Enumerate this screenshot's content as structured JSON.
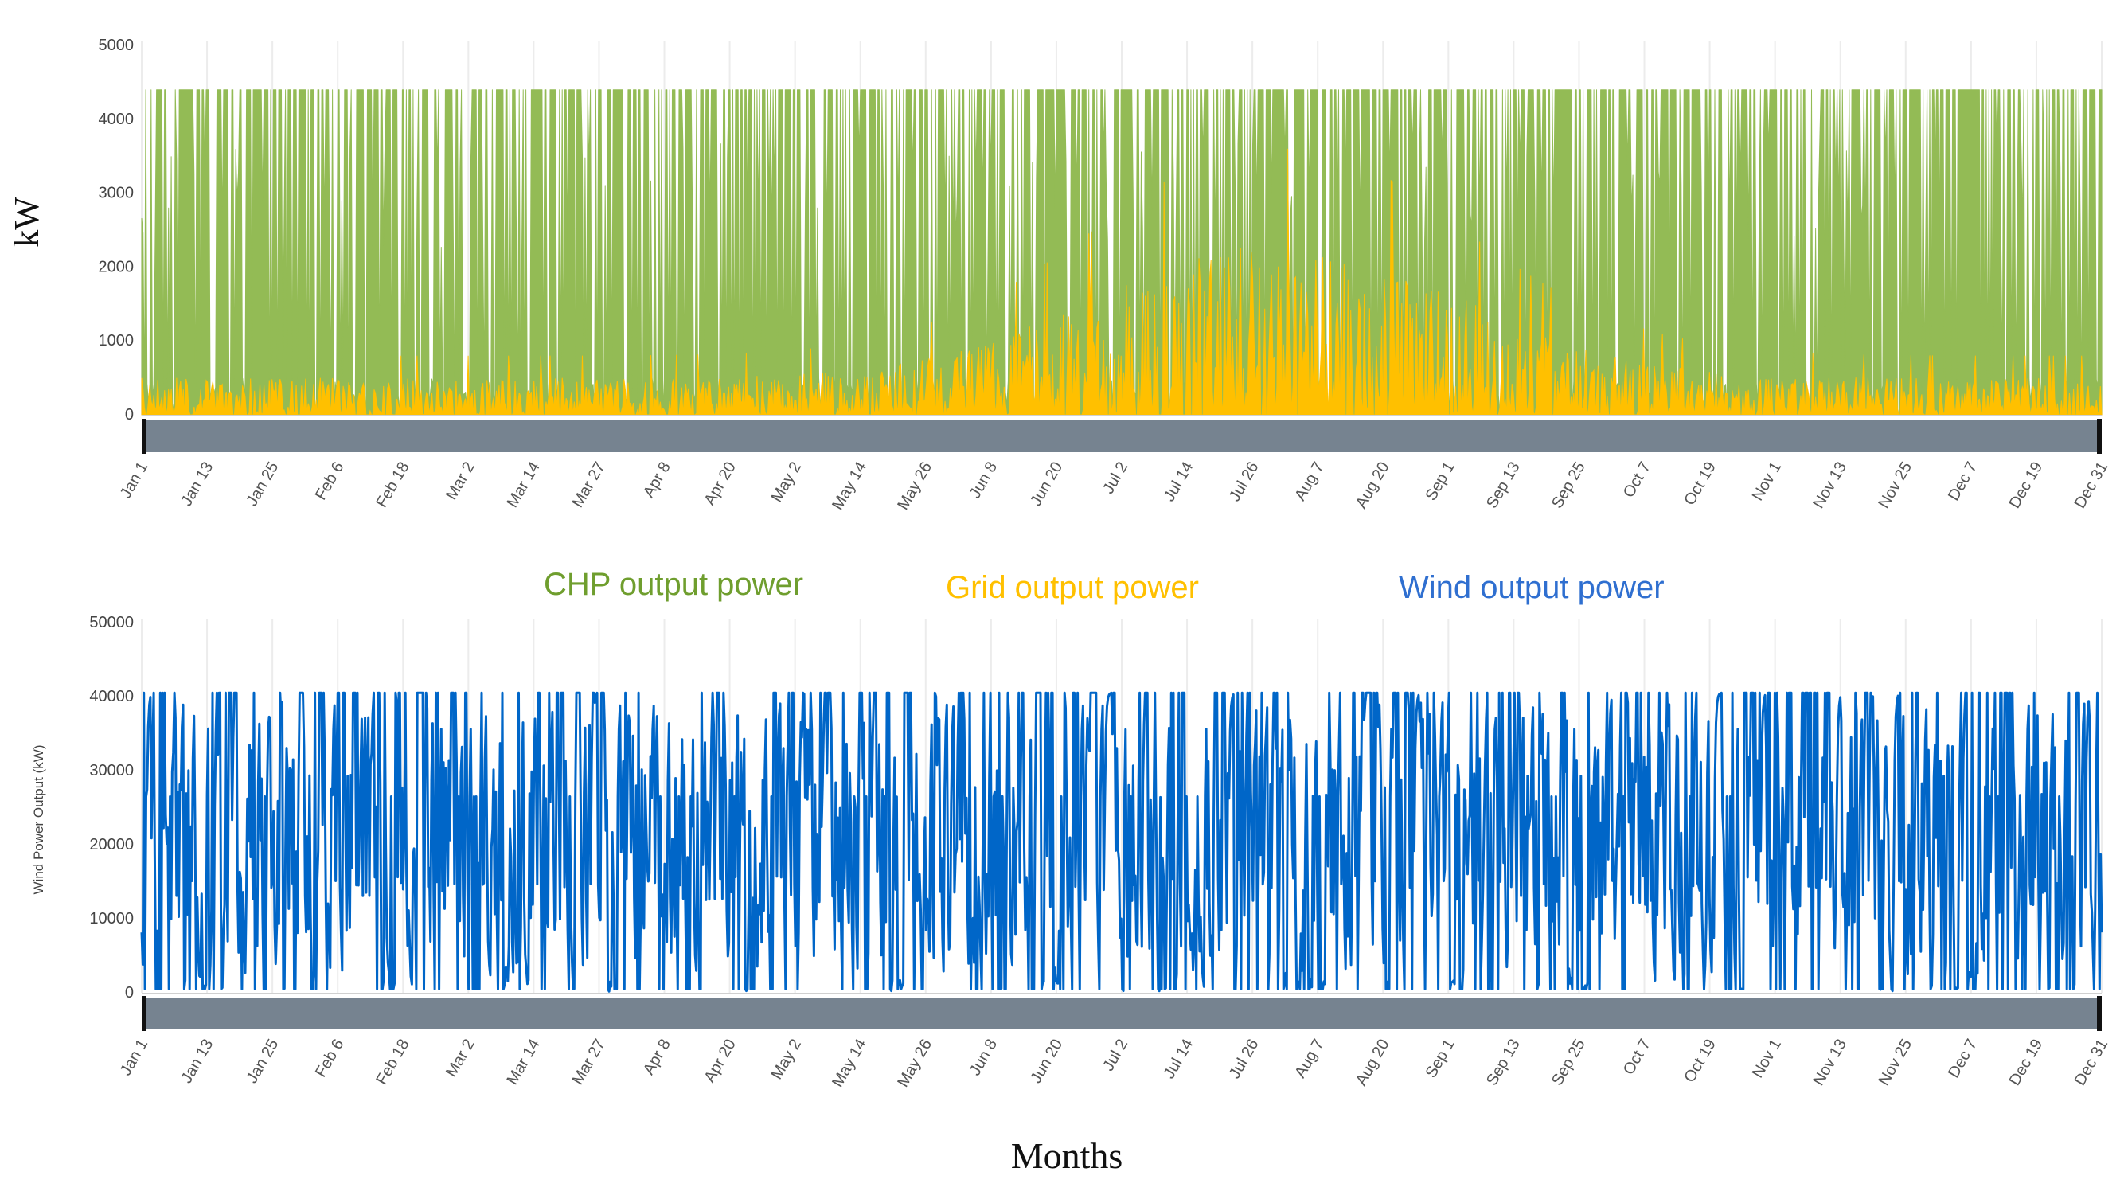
{
  "figure": {
    "legend": [
      {
        "label": "CHP output power",
        "color": "#6f9e2e"
      },
      {
        "label": "Grid output power",
        "color": "#ffc000"
      },
      {
        "label": "Wind output power",
        "color": "#2f6fd0"
      }
    ],
    "x_caption": "Months"
  },
  "chart_data": [
    {
      "type": "area",
      "title": "",
      "ylabel": "kW",
      "xlabel": "",
      "ylim": [
        0,
        5000
      ],
      "yticks": [
        0,
        1000,
        2000,
        3000,
        4000,
        5000
      ],
      "xlim": [
        "Jan 1",
        "Dec 31"
      ],
      "x_tick_labels": [
        "Jan 1",
        "Jan 13",
        "Jan 25",
        "Feb 6",
        "Feb 18",
        "Mar 2",
        "Mar 14",
        "Mar 27",
        "Apr 8",
        "Apr 20",
        "May 2",
        "May 14",
        "May 26",
        "Jun 8",
        "Jun 20",
        "Jul 2",
        "Jul 14",
        "Jul 26",
        "Aug 7",
        "Aug 20",
        "Sep 1",
        "Sep 13",
        "Sep 25",
        "Oct 7",
        "Oct 19",
        "Nov 1",
        "Nov 13",
        "Nov 25",
        "Dec 7",
        "Dec 19",
        "Dec 31"
      ],
      "grid": "vertical",
      "series": [
        {
          "name": "CHP output power",
          "color": "#93bb55",
          "peak": 4400,
          "typical_range": [
            0,
            4400
          ]
        },
        {
          "name": "Grid output power",
          "color": "#ffc000",
          "peak": 3600,
          "typical_range": [
            0,
            1500
          ]
        }
      ]
    },
    {
      "type": "line",
      "title": "",
      "ylabel": "Wind Power Output (kW)",
      "xlabel": "Months",
      "ylim": [
        0,
        50000
      ],
      "yticks": [
        0,
        10000,
        20000,
        30000,
        40000,
        50000
      ],
      "xlim": [
        "Jan 1",
        "Dec 31"
      ],
      "x_tick_labels": [
        "Jan 1",
        "Jan 13",
        "Jan 25",
        "Feb 6",
        "Feb 18",
        "Mar 2",
        "Mar 14",
        "Mar 27",
        "Apr 8",
        "Apr 20",
        "May 2",
        "May 14",
        "May 26",
        "Jun 8",
        "Jun 20",
        "Jul 2",
        "Jul 14",
        "Jul 26",
        "Aug 7",
        "Aug 20",
        "Sep 1",
        "Sep 13",
        "Sep 25",
        "Oct 7",
        "Oct 19",
        "Nov 1",
        "Nov 13",
        "Nov 25",
        "Dec 7",
        "Dec 19",
        "Dec 31"
      ],
      "grid": "vertical",
      "series": [
        {
          "name": "Wind output power",
          "color": "#0066c8",
          "peak": 40500,
          "typical_range": [
            0,
            40500
          ]
        }
      ]
    }
  ]
}
